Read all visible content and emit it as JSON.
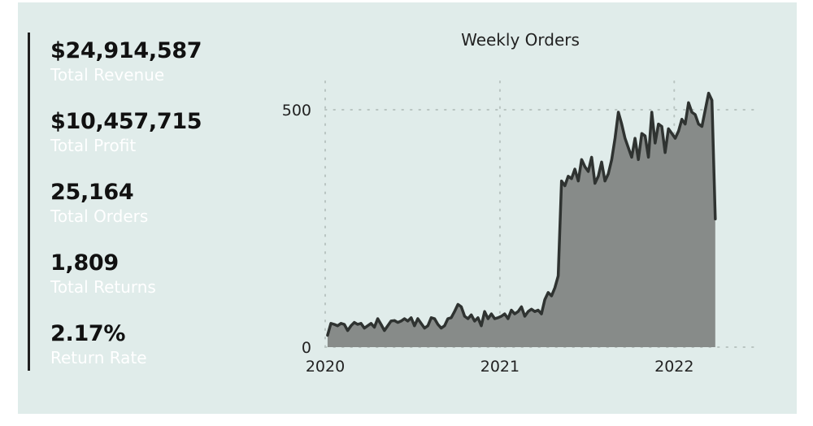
{
  "kpis": [
    {
      "value": "$24,914,587",
      "label": "Total Revenue"
    },
    {
      "value": "$10,457,715",
      "label": "Total Profit"
    },
    {
      "value": "25,164",
      "label": "Total Orders"
    },
    {
      "value": "1,809",
      "label": "Total Returns"
    },
    {
      "value": "2.17%",
      "label": "Return Rate"
    }
  ],
  "colors": {
    "card_bg": "#e0ecea",
    "area_fill": "#878b89",
    "line": "#2f3331",
    "grid": "#b9c4c1"
  },
  "chart_data": {
    "type": "area",
    "title": "Weekly Orders",
    "xlabel": "",
    "ylabel": "",
    "x_ticks": [
      "2020",
      "2021",
      "2022"
    ],
    "y_ticks": [
      0,
      500
    ],
    "xlim": [
      "2020-01-01",
      "2022-06-30"
    ],
    "ylim": [
      0,
      560
    ],
    "grid": true,
    "series": [
      {
        "values": [
          {
            "x": "2020-01-06",
            "y": 25
          },
          {
            "x": "2020-01-13",
            "y": 50
          },
          {
            "x": "2020-01-20",
            "y": 48
          },
          {
            "x": "2020-01-27",
            "y": 45
          },
          {
            "x": "2020-02-03",
            "y": 50
          },
          {
            "x": "2020-02-10",
            "y": 48
          },
          {
            "x": "2020-02-17",
            "y": 35
          },
          {
            "x": "2020-02-24",
            "y": 45
          },
          {
            "x": "2020-03-02",
            "y": 52
          },
          {
            "x": "2020-03-09",
            "y": 48
          },
          {
            "x": "2020-03-16",
            "y": 50
          },
          {
            "x": "2020-03-23",
            "y": 40
          },
          {
            "x": "2020-03-30",
            "y": 45
          },
          {
            "x": "2020-04-06",
            "y": 50
          },
          {
            "x": "2020-04-13",
            "y": 42
          },
          {
            "x": "2020-04-20",
            "y": 60
          },
          {
            "x": "2020-04-27",
            "y": 48
          },
          {
            "x": "2020-05-04",
            "y": 35
          },
          {
            "x": "2020-05-11",
            "y": 45
          },
          {
            "x": "2020-05-18",
            "y": 55
          },
          {
            "x": "2020-05-25",
            "y": 56
          },
          {
            "x": "2020-06-01",
            "y": 52
          },
          {
            "x": "2020-06-08",
            "y": 55
          },
          {
            "x": "2020-06-15",
            "y": 60
          },
          {
            "x": "2020-06-22",
            "y": 55
          },
          {
            "x": "2020-06-29",
            "y": 62
          },
          {
            "x": "2020-07-06",
            "y": 45
          },
          {
            "x": "2020-07-13",
            "y": 60
          },
          {
            "x": "2020-07-20",
            "y": 50
          },
          {
            "x": "2020-07-27",
            "y": 40
          },
          {
            "x": "2020-08-03",
            "y": 45
          },
          {
            "x": "2020-08-10",
            "y": 62
          },
          {
            "x": "2020-08-17",
            "y": 60
          },
          {
            "x": "2020-08-24",
            "y": 48
          },
          {
            "x": "2020-08-31",
            "y": 40
          },
          {
            "x": "2020-09-07",
            "y": 45
          },
          {
            "x": "2020-09-14",
            "y": 60
          },
          {
            "x": "2020-09-21",
            "y": 62
          },
          {
            "x": "2020-09-28",
            "y": 75
          },
          {
            "x": "2020-10-05",
            "y": 90
          },
          {
            "x": "2020-10-12",
            "y": 85
          },
          {
            "x": "2020-10-19",
            "y": 65
          },
          {
            "x": "2020-10-26",
            "y": 60
          },
          {
            "x": "2020-11-02",
            "y": 68
          },
          {
            "x": "2020-11-09",
            "y": 55
          },
          {
            "x": "2020-11-16",
            "y": 62
          },
          {
            "x": "2020-11-23",
            "y": 45
          },
          {
            "x": "2020-11-30",
            "y": 75
          },
          {
            "x": "2020-12-07",
            "y": 60
          },
          {
            "x": "2020-12-14",
            "y": 70
          },
          {
            "x": "2020-12-21",
            "y": 60
          },
          {
            "x": "2020-12-28",
            "y": 62
          },
          {
            "x": "2021-01-04",
            "y": 65
          },
          {
            "x": "2021-01-11",
            "y": 70
          },
          {
            "x": "2021-01-18",
            "y": 60
          },
          {
            "x": "2021-01-25",
            "y": 78
          },
          {
            "x": "2021-02-01",
            "y": 70
          },
          {
            "x": "2021-02-08",
            "y": 75
          },
          {
            "x": "2021-02-15",
            "y": 85
          },
          {
            "x": "2021-02-22",
            "y": 65
          },
          {
            "x": "2021-03-01",
            "y": 75
          },
          {
            "x": "2021-03-08",
            "y": 80
          },
          {
            "x": "2021-03-15",
            "y": 75
          },
          {
            "x": "2021-03-22",
            "y": 78
          },
          {
            "x": "2021-03-29",
            "y": 70
          },
          {
            "x": "2021-04-05",
            "y": 100
          },
          {
            "x": "2021-04-12",
            "y": 115
          },
          {
            "x": "2021-04-19",
            "y": 108
          },
          {
            "x": "2021-04-26",
            "y": 125
          },
          {
            "x": "2021-05-03",
            "y": 150
          },
          {
            "x": "2021-05-10",
            "y": 350
          },
          {
            "x": "2021-05-17",
            "y": 340
          },
          {
            "x": "2021-05-24",
            "y": 360
          },
          {
            "x": "2021-05-31",
            "y": 355
          },
          {
            "x": "2021-06-07",
            "y": 375
          },
          {
            "x": "2021-06-14",
            "y": 350
          },
          {
            "x": "2021-06-21",
            "y": 395
          },
          {
            "x": "2021-06-28",
            "y": 380
          },
          {
            "x": "2021-07-05",
            "y": 370
          },
          {
            "x": "2021-07-12",
            "y": 400
          },
          {
            "x": "2021-07-19",
            "y": 345
          },
          {
            "x": "2021-07-26",
            "y": 360
          },
          {
            "x": "2021-08-02",
            "y": 390
          },
          {
            "x": "2021-08-09",
            "y": 350
          },
          {
            "x": "2021-08-16",
            "y": 365
          },
          {
            "x": "2021-08-23",
            "y": 395
          },
          {
            "x": "2021-08-30",
            "y": 440
          },
          {
            "x": "2021-09-06",
            "y": 495
          },
          {
            "x": "2021-09-13",
            "y": 470
          },
          {
            "x": "2021-09-20",
            "y": 440
          },
          {
            "x": "2021-09-27",
            "y": 420
          },
          {
            "x": "2021-10-04",
            "y": 400
          },
          {
            "x": "2021-10-11",
            "y": 440
          },
          {
            "x": "2021-10-18",
            "y": 395
          },
          {
            "x": "2021-10-25",
            "y": 450
          },
          {
            "x": "2021-11-01",
            "y": 445
          },
          {
            "x": "2021-11-08",
            "y": 400
          },
          {
            "x": "2021-11-15",
            "y": 495
          },
          {
            "x": "2021-11-22",
            "y": 430
          },
          {
            "x": "2021-11-29",
            "y": 470
          },
          {
            "x": "2021-12-06",
            "y": 465
          },
          {
            "x": "2021-12-13",
            "y": 410
          },
          {
            "x": "2021-12-20",
            "y": 460
          },
          {
            "x": "2021-12-27",
            "y": 450
          },
          {
            "x": "2022-01-03",
            "y": 440
          },
          {
            "x": "2022-01-10",
            "y": 455
          },
          {
            "x": "2022-01-17",
            "y": 480
          },
          {
            "x": "2022-01-24",
            "y": 470
          },
          {
            "x": "2022-01-31",
            "y": 515
          },
          {
            "x": "2022-02-07",
            "y": 495
          },
          {
            "x": "2022-02-14",
            "y": 490
          },
          {
            "x": "2022-02-21",
            "y": 470
          },
          {
            "x": "2022-02-28",
            "y": 465
          },
          {
            "x": "2022-03-07",
            "y": 500
          },
          {
            "x": "2022-03-14",
            "y": 535
          },
          {
            "x": "2022-03-21",
            "y": 520
          },
          {
            "x": "2022-03-28",
            "y": 270
          }
        ]
      }
    ]
  }
}
